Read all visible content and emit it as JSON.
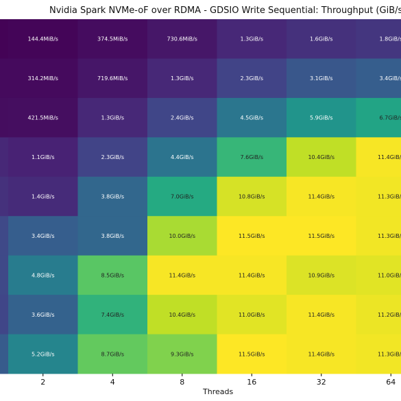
{
  "chart_data": {
    "type": "heatmap",
    "title": "Nvidia Spark NVMe-oF over RDMA - GDSIO Write Sequential: Throughput (GiB/s)",
    "xlabel": "Threads",
    "ylabel": "",
    "x_ticks": [
      "2",
      "4",
      "8",
      "16",
      "32",
      "64"
    ],
    "colormap": "viridis",
    "value_range": [
      0,
      11.5
    ],
    "rows": [
      {
        "labels": [
          "144.4MiB/s",
          "374.5MiB/s",
          "730.6MiB/s",
          "1.3GiB/s",
          "1.6GiB/s",
          "1.8GiB/s"
        ],
        "values": [
          0.141,
          0.366,
          0.713,
          1.3,
          1.6,
          1.8
        ]
      },
      {
        "labels": [
          "314.2MiB/s",
          "719.6MiB/s",
          "1.3GiB/s",
          "2.3GiB/s",
          "3.1GiB/s",
          "3.4GiB/s"
        ],
        "values": [
          0.307,
          0.703,
          1.3,
          2.3,
          3.1,
          3.4
        ]
      },
      {
        "labels": [
          "421.5MiB/s",
          "1.3GiB/s",
          "2.4GiB/s",
          "4.5GiB/s",
          "5.9GiB/s",
          "6.7GiB/s"
        ],
        "values": [
          0.412,
          1.3,
          2.4,
          4.5,
          5.9,
          6.7
        ]
      },
      {
        "labels": [
          "1.1GiB/s",
          "2.3GiB/s",
          "4.4GiB/s",
          "7.6GiB/s",
          "10.4GiB/s",
          "11.4GiB/s"
        ],
        "values": [
          1.1,
          2.3,
          4.4,
          7.6,
          10.4,
          11.4
        ]
      },
      {
        "labels": [
          "1.4GiB/s",
          "3.8GiB/s",
          "7.0GiB/s",
          "10.8GiB/s",
          "11.4GiB/s",
          "11.3GiB/s"
        ],
        "values": [
          1.4,
          3.8,
          7.0,
          10.8,
          11.4,
          11.3
        ]
      },
      {
        "labels": [
          "3.4GiB/s",
          "3.8GiB/s",
          "10.0GiB/s",
          "11.5GiB/s",
          "11.5GiB/s",
          "11.3GiB/s"
        ],
        "values": [
          3.4,
          3.8,
          10.0,
          11.5,
          11.5,
          11.3
        ]
      },
      {
        "labels": [
          "4.8GiB/s",
          "8.5GiB/s",
          "11.4GiB/s",
          "11.4GiB/s",
          "10.9GiB/s",
          "11.0GiB/s"
        ],
        "values": [
          4.8,
          8.5,
          11.4,
          11.4,
          10.9,
          11.0
        ]
      },
      {
        "labels": [
          "3.6GiB/s",
          "7.4GiB/s",
          "10.4GiB/s",
          "11.0GiB/s",
          "11.4GiB/s",
          "11.2GiB/s"
        ],
        "values": [
          3.6,
          7.4,
          10.4,
          11.0,
          11.4,
          11.2
        ]
      },
      {
        "labels": [
          "5.2GiB/s",
          "8.7GiB/s",
          "9.3GiB/s",
          "11.5GiB/s",
          "11.4GiB/s",
          "11.3GiB/s"
        ],
        "values": [
          5.2,
          8.7,
          9.3,
          11.5,
          11.4,
          11.3
        ]
      }
    ],
    "left_partial_column_values": [
      0.07,
      0.3,
      0.4,
      1.3,
      1.6,
      2.5,
      2.5,
      2.4,
      3.3
    ]
  }
}
